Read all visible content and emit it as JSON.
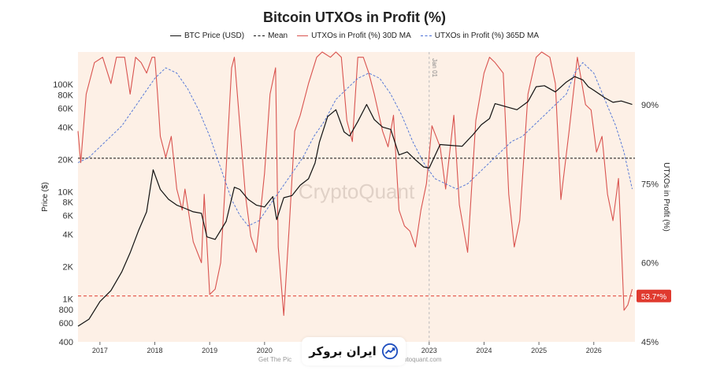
{
  "chart_data": {
    "type": "line",
    "title": "Bitcoin UTXOs in Profit (%)",
    "ylabel_left": "Price ($)",
    "ylabel_right": "UTXOs in Profit (%)",
    "legend": [
      {
        "name": "BTC Price (USD)",
        "color": "#111111",
        "style": "solid"
      },
      {
        "name": "Mean",
        "color": "#111111",
        "style": "dashed"
      },
      {
        "name": "UTXOs in Profit (%) 30D MA",
        "color": "#d9534f",
        "style": "solid"
      },
      {
        "name": "UTXOs in Profit (%) 365D MA",
        "color": "#4a6fd6",
        "style": "dashed"
      }
    ],
    "x_ticks": [
      "2017",
      "2018",
      "2019",
      "2020",
      "2021",
      "2022",
      "2023",
      "2024",
      "2025",
      "2026"
    ],
    "x_range": [
      2016.6,
      2026.75
    ],
    "left_axis": {
      "scale": "log",
      "ylim": [
        400,
        200000
      ],
      "ticks": [
        {
          "v": 100000,
          "label": "100K"
        },
        {
          "v": 80000,
          "label": "80K"
        },
        {
          "v": 60000,
          "label": "60K"
        },
        {
          "v": 40000,
          "label": "40K"
        },
        {
          "v": 20000,
          "label": "20K"
        },
        {
          "v": 10000,
          "label": "10K"
        },
        {
          "v": 8000,
          "label": "8K"
        },
        {
          "v": 6000,
          "label": "6K"
        },
        {
          "v": 4000,
          "label": "4K"
        },
        {
          "v": 2000,
          "label": "2K"
        },
        {
          "v": 1000,
          "label": "1K"
        },
        {
          "v": 800,
          "label": "800"
        },
        {
          "v": 600,
          "label": "600"
        },
        {
          "v": 400,
          "label": "400"
        }
      ]
    },
    "right_axis": {
      "scale": "linear",
      "ylim": [
        45,
        100
      ],
      "ticks": [
        {
          "v": 90,
          "label": "90%"
        },
        {
          "v": 75,
          "label": "75%"
        },
        {
          "v": 60,
          "label": "60%"
        },
        {
          "v": 45,
          "label": "45%"
        }
      ]
    },
    "mean_price": 20500,
    "current_marker": {
      "value": 53.7,
      "label": "53.7*%",
      "color": "#e03a2f"
    },
    "vertical_marker": {
      "x": 2023.0,
      "label": "Jan 01"
    },
    "grid": false,
    "background_shade": "#fdf0e6",
    "watermark": "CryptoQuant",
    "series": [
      {
        "name": "BTC Price (USD)",
        "axis": "left",
        "x": [
          2016.6,
          2016.8,
          2017.0,
          2017.2,
          2017.4,
          2017.55,
          2017.7,
          2017.85,
          2017.97,
          2018.1,
          2018.25,
          2018.4,
          2018.55,
          2018.7,
          2018.85,
          2018.95,
          2019.1,
          2019.3,
          2019.45,
          2019.55,
          2019.7,
          2019.85,
          2020.0,
          2020.15,
          2020.22,
          2020.35,
          2020.5,
          2020.65,
          2020.8,
          2020.92,
          2021.0,
          2021.15,
          2021.3,
          2021.45,
          2021.55,
          2021.7,
          2021.86,
          2022.0,
          2022.15,
          2022.3,
          2022.45,
          2022.6,
          2022.75,
          2022.9,
          2023.0,
          2023.2,
          2023.4,
          2023.6,
          2023.8,
          2023.95,
          2024.1,
          2024.2,
          2024.4,
          2024.6,
          2024.8,
          2024.95,
          2025.1,
          2025.3,
          2025.5,
          2025.65,
          2025.8,
          2025.9,
          2026.0,
          2026.2,
          2026.35,
          2026.5,
          2026.7
        ],
        "values": [
          560,
          650,
          950,
          1200,
          1800,
          2700,
          4300,
          6500,
          16000,
          10500,
          8500,
          7500,
          7000,
          6500,
          6300,
          3800,
          3600,
          5300,
          11000,
          10500,
          8500,
          7500,
          7200,
          9000,
          5500,
          8800,
          9200,
          11500,
          13200,
          18500,
          29000,
          50000,
          58000,
          36000,
          33000,
          45000,
          65000,
          47000,
          40000,
          38000,
          22000,
          23500,
          19800,
          17000,
          16600,
          27500,
          27000,
          26500,
          34000,
          42000,
          48000,
          66000,
          62000,
          58000,
          69000,
          95000,
          97000,
          85000,
          105000,
          118000,
          110000,
          95000,
          88000,
          75000,
          68000,
          70000,
          65000
        ]
      },
      {
        "name": "UTXOs in Profit (%) 30D MA",
        "axis": "right",
        "x": [
          2016.6,
          2016.65,
          2016.75,
          2016.9,
          2017.05,
          2017.2,
          2017.3,
          2017.45,
          2017.55,
          2017.65,
          2017.75,
          2017.85,
          2017.95,
          2018.0,
          2018.05,
          2018.1,
          2018.2,
          2018.3,
          2018.4,
          2018.5,
          2018.55,
          2018.7,
          2018.85,
          2018.9,
          2019.0,
          2019.1,
          2019.2,
          2019.3,
          2019.4,
          2019.45,
          2019.55,
          2019.65,
          2019.75,
          2019.85,
          2020.0,
          2020.1,
          2020.2,
          2020.25,
          2020.35,
          2020.45,
          2020.55,
          2020.65,
          2020.8,
          2020.95,
          2021.05,
          2021.2,
          2021.3,
          2021.4,
          2021.5,
          2021.6,
          2021.7,
          2021.8,
          2021.9,
          2022.0,
          2022.15,
          2022.25,
          2022.35,
          2022.45,
          2022.55,
          2022.65,
          2022.75,
          2022.85,
          2022.95,
          2023.05,
          2023.2,
          2023.3,
          2023.45,
          2023.55,
          2023.7,
          2023.85,
          2024.0,
          2024.1,
          2024.2,
          2024.35,
          2024.45,
          2024.55,
          2024.65,
          2024.8,
          2024.95,
          2025.05,
          2025.2,
          2025.3,
          2025.4,
          2025.55,
          2025.7,
          2025.85,
          2025.95,
          2026.05,
          2026.15,
          2026.25,
          2026.35,
          2026.45,
          2026.5,
          2026.55,
          2026.62,
          2026.7
        ],
        "values": [
          85,
          79,
          92,
          98,
          99,
          94,
          99,
          99,
          92,
          99,
          98,
          96,
          99,
          99,
          92,
          84,
          80,
          84,
          74,
          70,
          74,
          64,
          60,
          73,
          54,
          55,
          60,
          78,
          97,
          99,
          86,
          73,
          65,
          62,
          77,
          92,
          97,
          63,
          50,
          67,
          85,
          88,
          94,
          99,
          100,
          99,
          100,
          99,
          87,
          83,
          99,
          99,
          96,
          92,
          85,
          82,
          88,
          70,
          67,
          66,
          63,
          70,
          75,
          86,
          82,
          74,
          88,
          71,
          62,
          87,
          96,
          99,
          98,
          96,
          73,
          63,
          68,
          92,
          99,
          100,
          99,
          94,
          72,
          85,
          99,
          90,
          89,
          81,
          84,
          73,
          68,
          76,
          64,
          51,
          52,
          55
        ]
      },
      {
        "name": "UTXOs in Profit (%) 365D MA",
        "axis": "right",
        "x": [
          2016.6,
          2016.8,
          2017.0,
          2017.2,
          2017.4,
          2017.6,
          2017.8,
          2018.0,
          2018.2,
          2018.4,
          2018.6,
          2018.8,
          2019.0,
          2019.2,
          2019.4,
          2019.55,
          2019.7,
          2019.9,
          2020.1,
          2020.3,
          2020.5,
          2020.7,
          2020.9,
          2021.1,
          2021.3,
          2021.5,
          2021.7,
          2021.9,
          2022.1,
          2022.3,
          2022.5,
          2022.7,
          2022.9,
          2023.1,
          2023.3,
          2023.5,
          2023.7,
          2023.9,
          2024.1,
          2024.3,
          2024.5,
          2024.7,
          2024.9,
          2025.1,
          2025.3,
          2025.5,
          2025.65,
          2025.8,
          2026.0,
          2026.2,
          2026.4,
          2026.55,
          2026.7
        ],
        "values": [
          79,
          80,
          82,
          84,
          86,
          89,
          92,
          95,
          97,
          96,
          93,
          89,
          84,
          78,
          72,
          69,
          67,
          68,
          71,
          74,
          77,
          80,
          84,
          87,
          91,
          93,
          95,
          96,
          95,
          92,
          88,
          83,
          79,
          76,
          75,
          74,
          75,
          77,
          79,
          81,
          83,
          84,
          86,
          88,
          90,
          92,
          96,
          98,
          96,
          91,
          86,
          81,
          74
        ]
      }
    ]
  },
  "badge": {
    "text": "ایران بروکر",
    "icon": "trend-up-icon"
  },
  "footer_fragments": [
    "Get The Pic",
    "ptoquant.com"
  ]
}
